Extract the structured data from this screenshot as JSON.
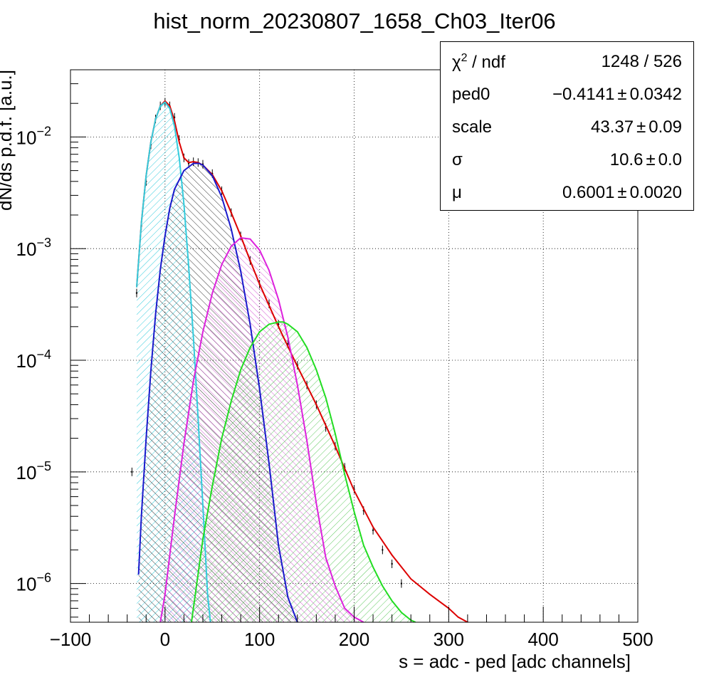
{
  "chart_data": {
    "type": "line",
    "title": "hist_norm_20230807_1658_Ch03_Iter06",
    "xlabel": "s = adc - ped [adc channels]",
    "ylabel": "dN/ds p.d.f. [a.u.]",
    "xlim": [
      -100,
      500
    ],
    "ylim": [
      4.5e-07,
      0.04
    ],
    "yscale": "log",
    "grid": true,
    "x_ticks": [
      "−100",
      "0",
      "100",
      "200",
      "300",
      "400",
      "500"
    ],
    "y_ticks": [
      {
        "base": "10",
        "exp": "−2"
      },
      {
        "base": "10",
        "exp": "−3"
      },
      {
        "base": "10",
        "exp": "−4"
      },
      {
        "base": "10",
        "exp": "−5"
      },
      {
        "base": "10",
        "exp": "−6"
      }
    ],
    "series": [
      {
        "name": "",
        "role": "data-histogram",
        "color": "#000000",
        "x": [
          -35,
          -30,
          -25,
          -20,
          -15,
          -10,
          -5,
          0,
          5,
          10,
          15,
          20,
          25,
          30,
          35,
          40,
          50,
          60,
          70,
          80,
          90,
          100,
          110,
          120,
          130,
          140,
          150,
          160,
          170,
          180,
          190,
          200,
          210,
          220,
          230,
          240,
          250
        ],
        "y": [
          1e-05,
          0.0004,
          0.0016,
          0.004,
          0.0085,
          0.0145,
          0.019,
          0.0205,
          0.019,
          0.015,
          0.0095,
          0.0065,
          0.0058,
          0.006,
          0.0059,
          0.0057,
          0.0047,
          0.0033,
          0.0021,
          0.0013,
          0.00078,
          0.00048,
          0.00032,
          0.00021,
          0.00014,
          9e-05,
          6e-05,
          4e-05,
          2.5e-05,
          1.7e-05,
          1.1e-05,
          7e-06,
          4.5e-06,
          3e-06,
          2e-06,
          1.5e-06,
          1e-06
        ]
      },
      {
        "name": "",
        "role": "total-fit",
        "color": "#dd0000",
        "x": [
          -30,
          -25,
          -20,
          -15,
          -10,
          -5,
          0,
          5,
          10,
          15,
          20,
          25,
          30,
          35,
          40,
          50,
          60,
          70,
          80,
          90,
          100,
          120,
          140,
          160,
          180,
          200,
          220,
          240,
          260,
          280,
          300,
          310,
          320,
          325
        ],
        "y": [
          0.00045,
          0.0017,
          0.0045,
          0.009,
          0.0145,
          0.019,
          0.021,
          0.019,
          0.014,
          0.009,
          0.0065,
          0.0059,
          0.006,
          0.0059,
          0.0056,
          0.0046,
          0.0033,
          0.0021,
          0.0013,
          0.00078,
          0.00048,
          0.0002,
          8.8e-05,
          4e-05,
          1.7e-05,
          6.8e-06,
          3.2e-06,
          1.8e-06,
          1.1e-06,
          8e-07,
          6e-07,
          5e-07,
          4.5e-07,
          4.3e-07
        ]
      },
      {
        "name": "",
        "role": "pedestal",
        "color": "#33ccdd",
        "fill": "#33ccdd",
        "x": [
          -30,
          -25,
          -20,
          -15,
          -10,
          -5,
          0,
          5,
          10,
          15,
          20,
          25,
          30,
          35,
          40,
          45,
          48
        ],
        "y": [
          0.00045,
          0.0017,
          0.0045,
          0.009,
          0.0145,
          0.019,
          0.0205,
          0.018,
          0.0125,
          0.0065,
          0.0025,
          0.0007,
          0.00016,
          3e-05,
          5e-06,
          8e-07,
          4.5e-07
        ]
      },
      {
        "name": "",
        "role": "1 p.e.",
        "color": "#1a1acc",
        "fill": "#000000",
        "x": [
          -28,
          -25,
          -20,
          -15,
          -10,
          -5,
          0,
          5,
          10,
          20,
          30,
          36,
          40,
          50,
          60,
          70,
          80,
          90,
          100,
          110,
          120,
          130,
          140,
          145
        ],
        "y": [
          1.2e-06,
          4e-06,
          2e-05,
          8e-05,
          0.00026,
          0.00065,
          0.0013,
          0.0023,
          0.0034,
          0.005,
          0.0058,
          0.0058,
          0.0056,
          0.0045,
          0.0029,
          0.0015,
          0.00063,
          0.00021,
          5.5e-05,
          1.2e-05,
          2.2e-06,
          7.5e-07,
          4.5e-07,
          4.4e-07
        ]
      },
      {
        "name": "",
        "role": "2 p.e.",
        "color": "#dd22dd",
        "fill": "#cc33cc",
        "x": [
          -5,
          0,
          10,
          20,
          30,
          40,
          50,
          60,
          70,
          80,
          90,
          100,
          110,
          120,
          130,
          140,
          150,
          160,
          170,
          180,
          190,
          200,
          210
        ],
        "y": [
          4.5e-07,
          8e-07,
          4e-06,
          1.8e-05,
          6.5e-05,
          0.00018,
          0.0004,
          0.00072,
          0.00105,
          0.00125,
          0.00122,
          0.00097,
          0.00064,
          0.00035,
          0.00016,
          6e-05,
          1.9e-05,
          5.2e-06,
          1.7e-06,
          9.5e-07,
          6e-07,
          5e-07,
          4.5e-07
        ]
      },
      {
        "name": "",
        "role": "3 p.e.",
        "color": "#22dd22",
        "fill": "#33bb33",
        "x": [
          28,
          40,
          50,
          60,
          70,
          80,
          90,
          100,
          110,
          120,
          125,
          130,
          140,
          150,
          160,
          170,
          180,
          190,
          200,
          210,
          220,
          230,
          240,
          250,
          260,
          265
        ],
        "y": [
          4.5e-07,
          2.5e-06,
          7.5e-06,
          2e-05,
          4.3e-05,
          8.2e-05,
          0.00013,
          0.00018,
          0.00021,
          0.00022,
          0.00022,
          0.00021,
          0.00018,
          0.00013,
          8.2e-05,
          4.6e-05,
          2.2e-05,
          9.5e-06,
          4.4e-06,
          2.2e-06,
          1.4e-06,
          9.5e-07,
          7e-07,
          5.5e-07,
          4.7e-07,
          4.5e-07
        ]
      }
    ],
    "stats": [
      {
        "name_main": "χ",
        "name_sup": "2",
        "name_rest": " / ndf",
        "value": "1248 / 526",
        "pm": "",
        "error": ""
      },
      {
        "name_main": "ped0",
        "name_sup": "",
        "name_rest": "",
        "value": "−0.4141",
        "pm": "±",
        "error": "0.0342"
      },
      {
        "name_main": "scale",
        "name_sup": "",
        "name_rest": "",
        "value": "43.37",
        "pm": "±",
        "error": "0.09"
      },
      {
        "name_main": "σ",
        "name_sup": "",
        "name_rest": "",
        "value": "10.6",
        "pm": "±",
        "error": "0.0"
      },
      {
        "name_main": "μ",
        "name_sup": "",
        "name_rest": "",
        "value": "0.6001",
        "pm": "±",
        "error": "0.0020"
      }
    ]
  }
}
